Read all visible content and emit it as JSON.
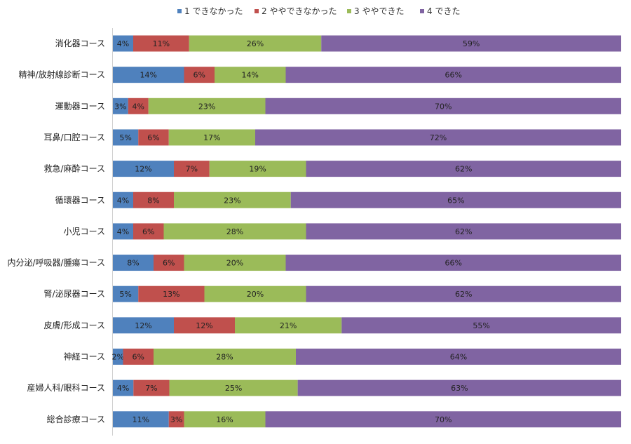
{
  "chart_data": {
    "type": "bar",
    "orientation": "horizontal",
    "stacked": "percent",
    "legend_position": "top",
    "grid": false,
    "xlim": [
      0,
      100
    ],
    "categories": [
      "消化器コース",
      "精神/放射線診断コース",
      "運動器コース",
      "耳鼻/口腔コース",
      "救急/麻酔コース",
      "循環器コース",
      "小児コース",
      "内分泌/呼吸器/腫瘍コース",
      "腎/泌尿器コース",
      "皮膚/形成コース",
      "神経コース",
      "産婦人科/眼科コース",
      "総合診療コース"
    ],
    "series": [
      {
        "name": "1 できなかった",
        "color": "#4f81bd",
        "values": [
          4,
          14,
          3,
          5,
          12,
          4,
          4,
          8,
          5,
          12,
          2,
          4,
          11
        ]
      },
      {
        "name": "2 ややできなかった",
        "color": "#c0504d",
        "values": [
          11,
          6,
          4,
          6,
          7,
          8,
          6,
          6,
          13,
          12,
          6,
          7,
          3
        ]
      },
      {
        "name": "3 ややできた",
        "color": "#9bbb59",
        "values": [
          26,
          14,
          23,
          17,
          19,
          23,
          28,
          20,
          20,
          21,
          28,
          25,
          16
        ]
      },
      {
        "name": "4 できた",
        "color": "#8064a2",
        "values": [
          59,
          66,
          70,
          72,
          62,
          65,
          62,
          66,
          62,
          55,
          64,
          63,
          70
        ]
      }
    ],
    "value_suffix": "%"
  }
}
